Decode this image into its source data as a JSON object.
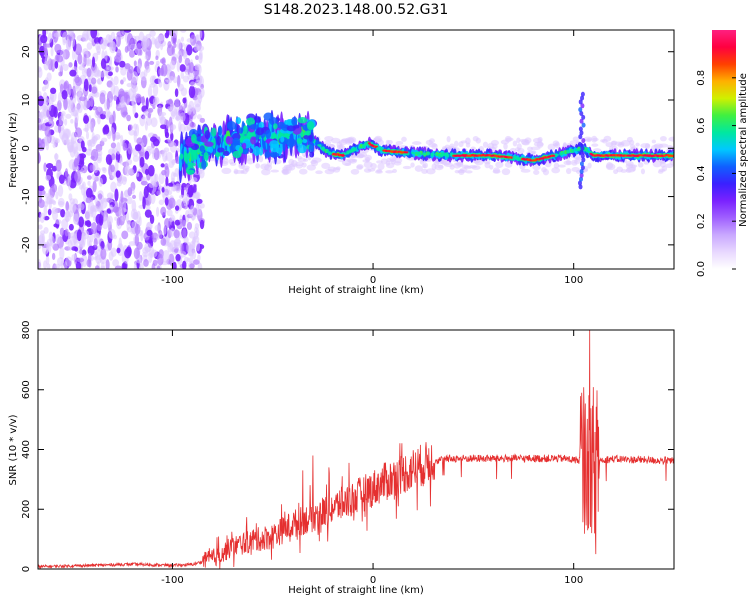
{
  "figure_title": "S148.2023.148.00.52.G31",
  "colors": {
    "snr_line": "#e53030",
    "axes": "#000000",
    "colormap": [
      "#ffffff",
      "#e8d8ff",
      "#c9a8ff",
      "#a060ff",
      "#7a22ff",
      "#3a20ff",
      "#1060ff",
      "#00c8ff",
      "#00e8a0",
      "#40f040",
      "#d0f000",
      "#ffb000",
      "#ff4000",
      "#ff0040",
      "#ff2080"
    ]
  },
  "chart_data": [
    {
      "type": "heatmap",
      "xlabel": "Height of straight line (km)",
      "ylabel": "Frequency (Hz)",
      "xlim": [
        -167,
        150
      ],
      "ylim": [
        -25,
        24.5
      ],
      "xticks": [
        -100,
        0,
        100
      ],
      "yticks": [
        -20,
        -10,
        0,
        10,
        20
      ],
      "colorbar": {
        "label": "Normalized spectral amplitude",
        "range": [
          0,
          1
        ],
        "ticks": [
          0.0,
          0.2,
          0.4,
          0.6,
          0.8
        ]
      },
      "ridge": {
        "description_points_km_hz": [
          [
            -95,
            -2
          ],
          [
            -85,
            0
          ],
          [
            -75,
            1.5
          ],
          [
            -65,
            2
          ],
          [
            -55,
            3
          ],
          [
            -48,
            2
          ],
          [
            -40,
            3
          ],
          [
            -34,
            3.5
          ],
          [
            -28,
            1
          ],
          [
            -22,
            -1
          ],
          [
            -15,
            -1.5
          ],
          [
            -8,
            0
          ],
          [
            -2,
            1
          ],
          [
            5,
            -0.5
          ],
          [
            20,
            -1
          ],
          [
            40,
            -1.5
          ],
          [
            60,
            -1.5
          ],
          [
            80,
            -2.5
          ],
          [
            95,
            -1
          ],
          [
            105,
            0
          ],
          [
            110,
            -1.5
          ],
          [
            150,
            -1.5
          ]
        ],
        "strong_segments_km": [
          [
            -20,
            -14
          ],
          [
            -2,
            2
          ],
          [
            5,
            17
          ],
          [
            40,
            70
          ],
          [
            74,
            90
          ],
          [
            108,
            150
          ]
        ]
      },
      "noise_region_km": [
        -167,
        -95
      ]
    },
    {
      "type": "line",
      "xlabel": "Height of straight line (km)",
      "ylabel": "SNR (10 * v/v)",
      "xlim": [
        -167,
        150
      ],
      "ylim": [
        0,
        800
      ],
      "xticks": [
        -100,
        0,
        100
      ],
      "yticks": [
        0,
        200,
        400,
        600,
        800
      ],
      "trend_points_km_snr": [
        [
          -167,
          8
        ],
        [
          -140,
          12
        ],
        [
          -120,
          16
        ],
        [
          -100,
          12
        ],
        [
          -90,
          15
        ],
        [
          -80,
          35
        ],
        [
          -70,
          75
        ],
        [
          -60,
          95
        ],
        [
          -50,
          110
        ],
        [
          -40,
          150
        ],
        [
          -30,
          175
        ],
        [
          -20,
          205
        ],
        [
          -10,
          235
        ],
        [
          0,
          270
        ],
        [
          10,
          305
        ],
        [
          20,
          335
        ],
        [
          30,
          362
        ],
        [
          40,
          370
        ],
        [
          60,
          370
        ],
        [
          80,
          370
        ],
        [
          95,
          370
        ],
        [
          100,
          365
        ],
        [
          105,
          365
        ],
        [
          110,
          365
        ],
        [
          120,
          368
        ],
        [
          150,
          362
        ]
      ],
      "spikes_km_snr": [
        [
          -35,
          330
        ],
        [
          -30,
          380
        ],
        [
          -22,
          340
        ],
        [
          -12,
          355
        ],
        [
          104,
          590
        ],
        [
          108,
          800
        ],
        [
          111,
          660
        ]
      ],
      "dropouts_km_snr": [
        [
          109,
          120
        ],
        [
          111,
          50
        ],
        [
          107,
          130
        ]
      ]
    }
  ]
}
